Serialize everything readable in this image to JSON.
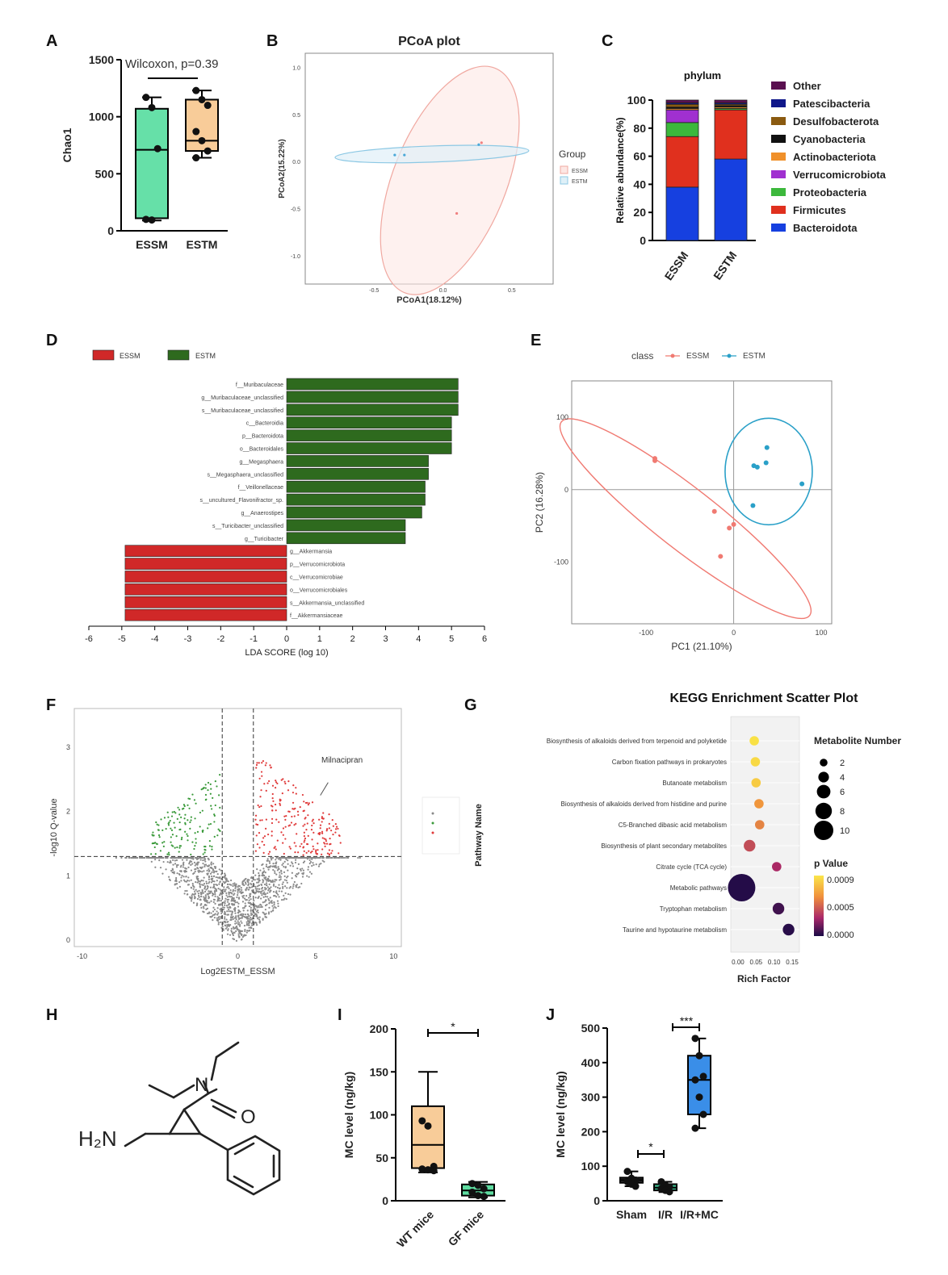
{
  "panel_letters": [
    "A",
    "B",
    "C",
    "D",
    "E",
    "F",
    "G",
    "H",
    "I",
    "J"
  ],
  "chart_data": [
    {
      "panel": "A",
      "type": "box",
      "ylabel": "Chao1",
      "annotation": "Wilcoxon, p=0.39",
      "ylim": [
        0,
        1500
      ],
      "yticks": [
        "0",
        "500",
        "1000",
        "1500"
      ],
      "categories": [
        "ESSM",
        "ESTM"
      ],
      "boxes": [
        {
          "name": "ESSM",
          "color": "#66e0a8",
          "min": 90,
          "q1": 110,
          "median": 710,
          "q3": 1070,
          "max": 1170,
          "points": [
            1170,
            1080,
            720,
            100,
            95
          ]
        },
        {
          "name": "ESTM",
          "color": "#f8cc99",
          "min": 640,
          "q1": 700,
          "median": 790,
          "q3": 1150,
          "max": 1230,
          "points": [
            1230,
            1150,
            1100,
            870,
            790,
            700,
            640
          ]
        }
      ]
    },
    {
      "panel": "B",
      "type": "scatter",
      "title": "PCoA plot",
      "xlabel": "PCoA1(18.12%)",
      "ylabel": "PCoA2(15.22%)",
      "xticks": [
        "-0.5",
        "0.0",
        "0.5"
      ],
      "yticks": [
        "1.0",
        "0.5",
        "0.0",
        "-0.5",
        "-1.0"
      ],
      "xlim": [
        -1.0,
        0.8
      ],
      "ylim": [
        -1.3,
        1.15
      ],
      "legend_title": "Group",
      "legend": [
        "ESSM",
        "ESTM"
      ],
      "series": [
        {
          "name": "ESSM",
          "color": "#f08080",
          "points": [
            [
              0.1,
              -0.55
            ],
            [
              0.28,
              0.2
            ]
          ]
        },
        {
          "name": "ESTM",
          "color": "#4aa8d8",
          "points": [
            [
              -0.35,
              0.07
            ],
            [
              -0.28,
              0.07
            ],
            [
              0.26,
              0.18
            ]
          ]
        }
      ]
    },
    {
      "panel": "C",
      "type": "bar",
      "title": "phylum",
      "ylabel": "Relative abundance(%)",
      "ylim": [
        0,
        100
      ],
      "yticks": [
        "0",
        "20",
        "40",
        "60",
        "80",
        "100"
      ],
      "categories": [
        "ESSM",
        "ESTM"
      ],
      "series": [
        {
          "name": "Bacteroidota",
          "color": "#1640e0",
          "values": [
            38,
            58
          ]
        },
        {
          "name": "Firmicutes",
          "color": "#e0301e",
          "values": [
            36,
            35
          ]
        },
        {
          "name": "Proteobacteria",
          "color": "#3cb83c",
          "values": [
            10,
            1
          ]
        },
        {
          "name": "Verrucomicrobiota",
          "color": "#a030d0",
          "values": [
            9,
            0
          ]
        },
        {
          "name": "Actinobacteriota",
          "color": "#f0902a",
          "values": [
            1,
            1
          ]
        },
        {
          "name": "Cyanobacteria",
          "color": "#111111",
          "values": [
            1,
            1
          ]
        },
        {
          "name": "Desulfobacterota",
          "color": "#8a5a10",
          "values": [
            2,
            1
          ]
        },
        {
          "name": "Patescibacteria",
          "color": "#10188a",
          "values": [
            1,
            1
          ]
        },
        {
          "name": "Other",
          "color": "#5a1050",
          "values": [
            2,
            2
          ]
        }
      ]
    },
    {
      "panel": "D",
      "type": "bar",
      "xlabel": "LDA SCORE (log 10)",
      "xlim": [
        -6,
        6
      ],
      "xticks": [
        "-6",
        "-5",
        "-4",
        "-3",
        "-2",
        "-1",
        "0",
        "1",
        "2",
        "3",
        "4",
        "5",
        "6"
      ],
      "legend": [
        "ESSM",
        "ESTM"
      ],
      "series": [
        {
          "name": "ESTM",
          "color": "#2e6a1e",
          "labels": [
            "f__Muribaculaceae",
            "g__Muribaculaceae_unclassified",
            "s__Muribaculaceae_unclassified",
            "c__Bacteroidia",
            "p__Bacteroidota",
            "o__Bacteroidales",
            "g__Megasphaera",
            "s__Megasphaera_unclassified",
            "f__Veillonellaceae",
            "s__uncultured_Flavonifractor_sp.",
            "g__Anaerostipes",
            "s__Turicibacter_unclassified",
            "g__Turicibacter"
          ],
          "values": [
            5.2,
            5.2,
            5.2,
            5.0,
            5.0,
            5.0,
            4.3,
            4.3,
            4.2,
            4.2,
            4.1,
            3.6,
            3.6
          ]
        },
        {
          "name": "ESSM",
          "color": "#d02828",
          "labels": [
            "g__Akkermansia",
            "p__Verrucomicrobiota",
            "c__Verrucomicrobiae",
            "o__Verrucomicrobiales",
            "s__Akkermansia_unclassified",
            "f__Akkermansiaceae"
          ],
          "values": [
            -4.9,
            -4.9,
            -4.9,
            -4.9,
            -4.9,
            -4.9
          ]
        }
      ]
    },
    {
      "panel": "E",
      "type": "scatter",
      "xlabel": "PC1 (21.10%)",
      "ylabel": "PC2 (16.28%)",
      "xlim": [
        -185,
        112
      ],
      "ylim": [
        -185,
        150
      ],
      "xticks": [
        "-100",
        "0",
        "100"
      ],
      "yticks": [
        "100",
        "0",
        "-100"
      ],
      "legend_title": "class",
      "legend": [
        "ESSM",
        "ESTM"
      ],
      "series": [
        {
          "name": "ESSM",
          "color": "#f07a72",
          "points": [
            [
              -90,
              43
            ],
            [
              -90,
              40
            ],
            [
              -22,
              -30
            ],
            [
              -5,
              -53
            ],
            [
              0,
              -48
            ],
            [
              -15,
              -92
            ]
          ]
        },
        {
          "name": "ESTM",
          "color": "#2aa0c8",
          "points": [
            [
              38,
              58
            ],
            [
              37,
              37
            ],
            [
              23,
              33
            ],
            [
              27,
              31
            ],
            [
              78,
              8
            ],
            [
              22,
              -22
            ]
          ]
        }
      ]
    },
    {
      "panel": "F",
      "type": "scatter",
      "xlabel": "Log2ESTM_ESSM",
      "ylabel": "-log10 Q-value",
      "xlim": [
        -10.5,
        10.5
      ],
      "ylim": [
        -0.1,
        3.6
      ],
      "xticks": [
        "-10",
        "-5",
        "0",
        "5",
        "10"
      ],
      "yticks": [
        "0",
        "1",
        "2",
        "3"
      ],
      "annotation": "Milnacipran",
      "thresholds": {
        "x": [
          -1,
          1
        ],
        "y": 1.3
      }
    },
    {
      "panel": "G",
      "type": "scatter",
      "title": "KEGG Enrichment Scatter Plot",
      "xlabel": "Rich Factor",
      "ylabel": "Pathway Name",
      "xticks": [
        "0.00",
        "0.05",
        "0.10",
        "0.15"
      ],
      "xlim": [
        -0.02,
        0.17
      ],
      "size_legend_title": "Metabolite Number",
      "size_legend": [
        "2",
        "4",
        "6",
        "8",
        "10"
      ],
      "color_legend_title": "p Value",
      "color_legend": [
        "0.0009",
        "0.0005",
        "0.0000"
      ],
      "points": [
        {
          "pathway": "Biosynthesis of alkaloids derived from terpenoid and polyketide",
          "rich": 0.045,
          "number": 2,
          "p": 0.00088
        },
        {
          "pathway": "Carbon fixation pathways in prokaryotes",
          "rich": 0.048,
          "number": 2,
          "p": 0.00085
        },
        {
          "pathway": "Butanoate metabolism",
          "rich": 0.05,
          "number": 2,
          "p": 0.0008
        },
        {
          "pathway": "Biosynthesis of alkaloids derived from histidine and purine",
          "rich": 0.058,
          "number": 2,
          "p": 0.0006
        },
        {
          "pathway": "C5-Branched dibasic acid metabolism",
          "rich": 0.06,
          "number": 2,
          "p": 0.00055
        },
        {
          "pathway": "Biosynthesis of plant secondary metabolites",
          "rich": 0.032,
          "number": 3,
          "p": 0.0004
        },
        {
          "pathway": "Citrate cycle (TCA cycle)",
          "rich": 0.107,
          "number": 2,
          "p": 0.0003
        },
        {
          "pathway": "Metabolic pathways",
          "rich": 0.01,
          "number": 10,
          "p": 2e-05
        },
        {
          "pathway": "Tryptophan metabolism",
          "rich": 0.112,
          "number": 3,
          "p": 8e-05
        },
        {
          "pathway": "Taurine and hypotaurine metabolism",
          "rich": 0.14,
          "number": 3,
          "p": 3e-05
        }
      ]
    },
    {
      "panel": "I",
      "type": "box",
      "ylabel": "MC level (ng/kg)",
      "annotation": "*",
      "ylim": [
        0,
        200
      ],
      "yticks": [
        "0",
        "50",
        "100",
        "150",
        "200"
      ],
      "categories": [
        "WT mice",
        "GF mice"
      ],
      "boxes": [
        {
          "name": "WT mice",
          "color": "#f8cc99",
          "min": 33,
          "q1": 38,
          "median": 65,
          "q3": 110,
          "max": 150,
          "points": [
            93,
            87,
            40,
            37,
            36,
            35
          ]
        },
        {
          "name": "GF mice",
          "color": "#5edca0",
          "min": 4,
          "q1": 6,
          "median": 12,
          "q3": 19,
          "max": 22,
          "points": [
            20,
            18,
            14,
            10,
            6,
            5
          ]
        }
      ]
    },
    {
      "panel": "J",
      "type": "box",
      "ylabel": "MC level (ng/kg)",
      "annotations": [
        "*",
        "***"
      ],
      "ylim": [
        0,
        500
      ],
      "yticks": [
        "0",
        "100",
        "200",
        "300",
        "400",
        "500"
      ],
      "categories": [
        "Sham",
        "I/R",
        "I/R+MC"
      ],
      "boxes": [
        {
          "name": "Sham",
          "color": "#2a2a2a",
          "min": 42,
          "q1": 52,
          "median": 60,
          "q3": 67,
          "max": 85,
          "points": [
            85,
            65,
            60,
            55,
            48,
            42
          ]
        },
        {
          "name": "I/R",
          "color": "#3cb88c",
          "min": 25,
          "q1": 30,
          "median": 38,
          "q3": 48,
          "max": 55,
          "points": [
            55,
            45,
            40,
            35,
            30,
            26
          ]
        },
        {
          "name": "I/R+MC",
          "color": "#3a8ee8",
          "min": 210,
          "q1": 250,
          "median": 350,
          "q3": 420,
          "max": 470,
          "points": [
            470,
            420,
            360,
            350,
            300,
            250,
            210
          ]
        }
      ]
    }
  ],
  "molecule": {
    "amine_label": "H₂N",
    "nitrogen_label": "N",
    "oxygen_label": "O"
  }
}
